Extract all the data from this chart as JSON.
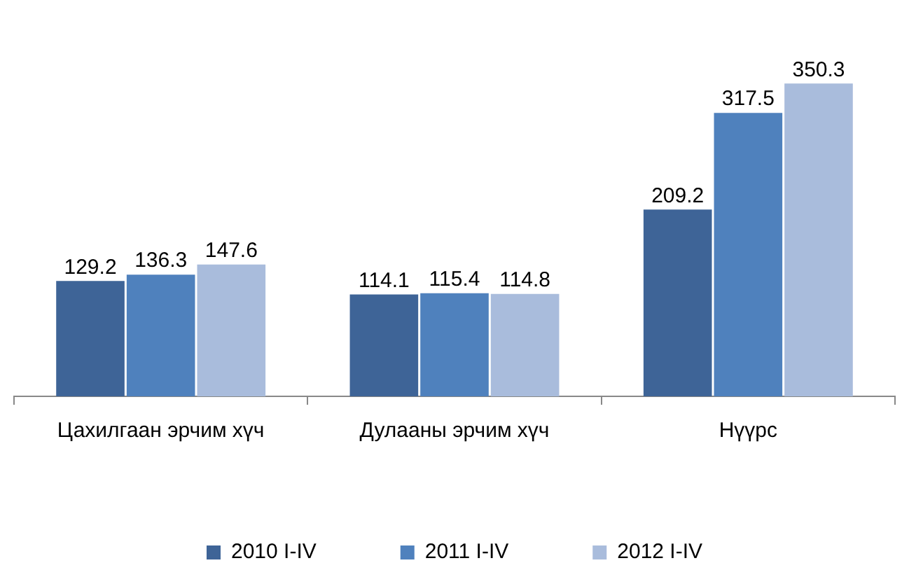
{
  "chart_data": {
    "type": "bar",
    "categories": [
      "Цахилгаан эрчим хүч",
      "Дулааны эрчим хүч",
      "Нүүрс"
    ],
    "series": [
      {
        "name": "2010 I-IV",
        "color": "#3e6497",
        "values": [
          129.2,
          114.1,
          209.2
        ]
      },
      {
        "name": "2011 I-IV",
        "color": "#4f81bd",
        "values": [
          136.3,
          115.4,
          317.5
        ]
      },
      {
        "name": "2012 I-IV",
        "color": "#a9bcdc",
        "values": [
          147.6,
          114.8,
          350.3
        ]
      }
    ],
    "data_labels": true,
    "grid": false,
    "legend": "bottom"
  }
}
